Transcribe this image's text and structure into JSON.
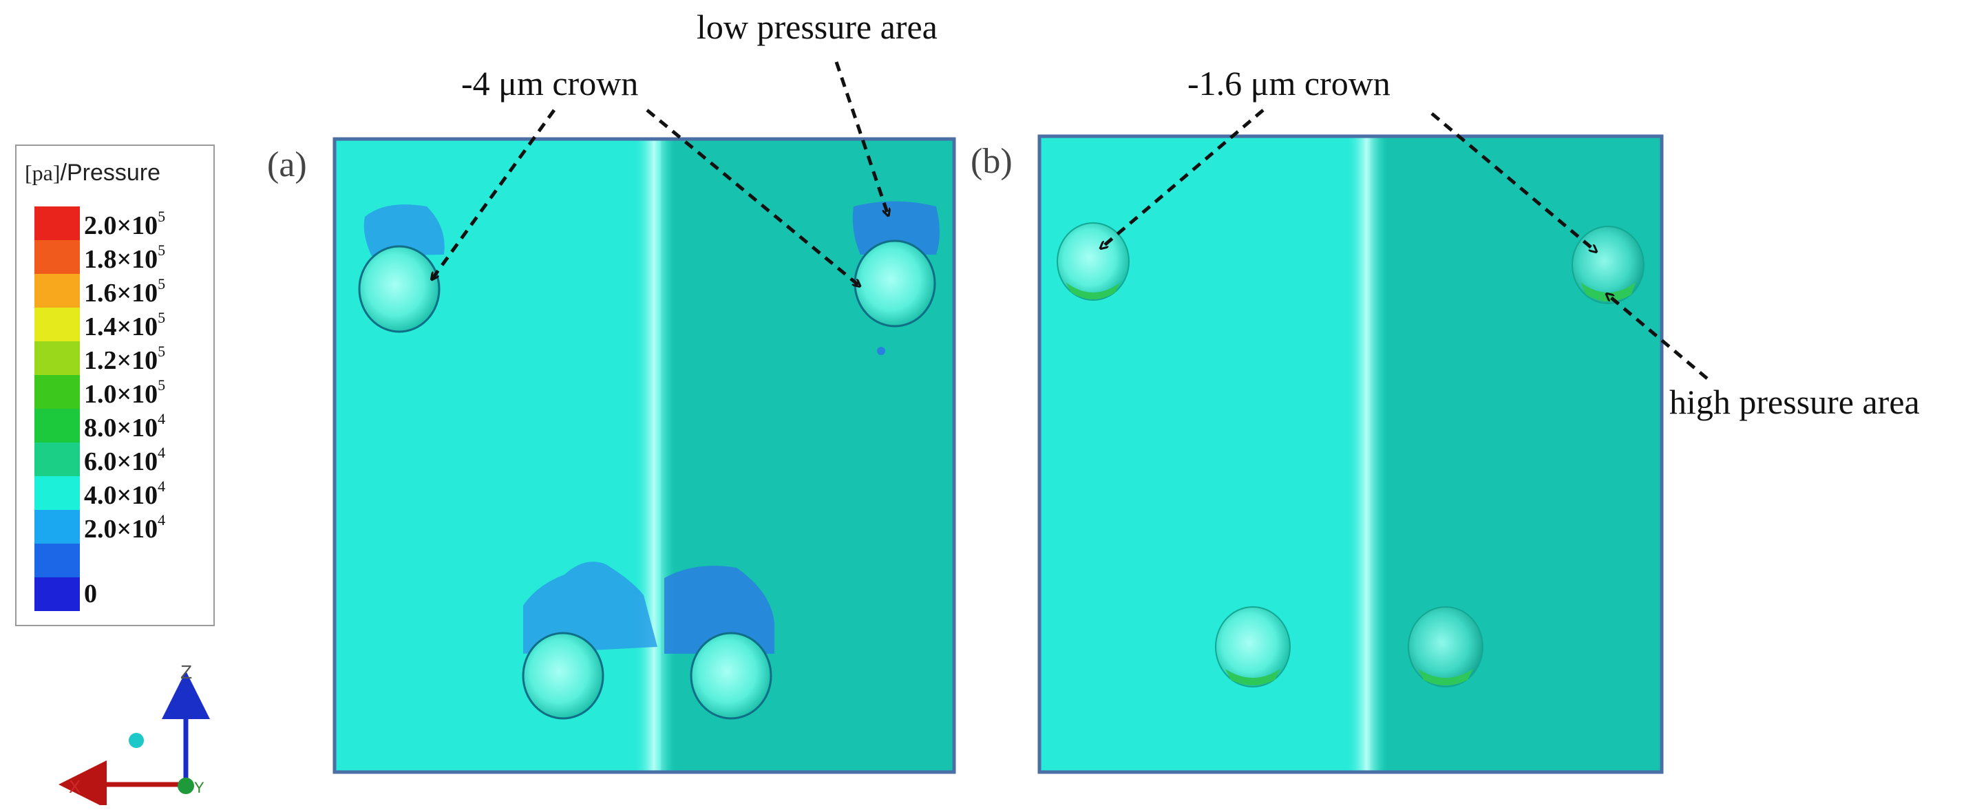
{
  "legend": {
    "unit": "[pa]",
    "title": "/Pressure",
    "entries": [
      {
        "label": "2.0×10",
        "exp": "5",
        "color": "#e8241c"
      },
      {
        "label": "1.8×10",
        "exp": "5",
        "color": "#f05a1c"
      },
      {
        "label": "1.6×10",
        "exp": "5",
        "color": "#f8a81c"
      },
      {
        "label": "1.4×10",
        "exp": "5",
        "color": "#e4ea1c"
      },
      {
        "label": "1.2×10",
        "exp": "5",
        "color": "#9ad81c"
      },
      {
        "label": "1.0×10",
        "exp": "5",
        "color": "#3cc81c"
      },
      {
        "label": "8.0×10",
        "exp": "4",
        "color": "#1cc83c"
      },
      {
        "label": "6.0×10",
        "exp": "4",
        "color": "#1ccf86"
      },
      {
        "label": "4.0×10",
        "exp": "4",
        "color": "#1cf0d8"
      },
      {
        "label": "2.0×10",
        "exp": "4",
        "color": "#1ca8f0"
      },
      {
        "label": "",
        "exp": "",
        "color": "#1c66e8"
      },
      {
        "label": "0",
        "exp": "",
        "color": "#1c22d8"
      }
    ]
  },
  "axes": {
    "z": "Z",
    "x": "X",
    "y": "Y"
  },
  "colors": {
    "frame": "#4a6fa5",
    "left_fluid": "#27ead8",
    "right_fluid": "#17c3ae",
    "seam": "#a8fff4",
    "low_pressure": "#2a9ee8",
    "high_pressure": "#2ec85a"
  },
  "panels": {
    "a": {
      "label": "(a)"
    },
    "b": {
      "label": "(b)"
    }
  },
  "annotations": {
    "crown_a": "-4 μm crown",
    "crown_b": "-1.6 μm crown",
    "low_pressure": "low pressure area",
    "high_pressure": "high pressure area"
  }
}
